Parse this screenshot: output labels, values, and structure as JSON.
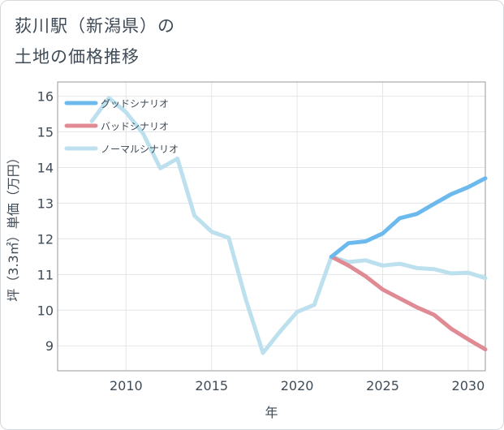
{
  "title_line1": "荻川駅（新潟県）の",
  "title_line2": "土地の価格推移",
  "chart_data": {
    "type": "line",
    "xlabel": "年",
    "ylabel": "坪（3.3㎡）単価（万円）",
    "xlim": [
      2006,
      2031
    ],
    "ylim": [
      8.3,
      16.4
    ],
    "x_ticks": [
      2010,
      2015,
      2020,
      2025,
      2030
    ],
    "y_ticks": [
      9,
      10,
      11,
      12,
      13,
      14,
      15,
      16
    ],
    "grid": "vertical and horizontal",
    "legend_position": "top-left",
    "series": [
      {
        "name": "グッドシナリオ",
        "color": "#6cb9ee",
        "points": [
          [
            2022,
            11.5
          ],
          [
            2023,
            11.88
          ],
          [
            2024,
            11.93
          ],
          [
            2025,
            12.15
          ],
          [
            2026,
            12.58
          ],
          [
            2027,
            12.7
          ],
          [
            2028,
            12.98
          ],
          [
            2029,
            13.25
          ],
          [
            2030,
            13.45
          ],
          [
            2031,
            13.7
          ]
        ]
      },
      {
        "name": "バッドシナリオ",
        "color": "#e08a93",
        "points": [
          [
            2022,
            11.5
          ],
          [
            2023,
            11.25
          ],
          [
            2024,
            10.95
          ],
          [
            2025,
            10.58
          ],
          [
            2026,
            10.33
          ],
          [
            2027,
            10.08
          ],
          [
            2028,
            9.87
          ],
          [
            2029,
            9.48
          ],
          [
            2030,
            9.18
          ],
          [
            2031,
            8.9
          ]
        ]
      },
      {
        "name": "ノーマルシナリオ",
        "color": "#bde0ee",
        "points": [
          [
            2008,
            15.3
          ],
          [
            2009,
            15.95
          ],
          [
            2010,
            15.55
          ],
          [
            2011,
            14.95
          ],
          [
            2012,
            13.98
          ],
          [
            2013,
            14.25
          ],
          [
            2014,
            12.65
          ],
          [
            2015,
            12.2
          ],
          [
            2016,
            12.03
          ],
          [
            2017,
            10.3
          ],
          [
            2018,
            8.8
          ],
          [
            2019,
            9.4
          ],
          [
            2020,
            9.95
          ],
          [
            2021,
            10.15
          ],
          [
            2022,
            11.5
          ],
          [
            2023,
            11.35
          ],
          [
            2024,
            11.4
          ],
          [
            2025,
            11.25
          ],
          [
            2026,
            11.3
          ],
          [
            2027,
            11.18
          ],
          [
            2028,
            11.15
          ],
          [
            2029,
            11.03
          ],
          [
            2030,
            11.05
          ],
          [
            2031,
            10.9
          ]
        ]
      }
    ]
  }
}
